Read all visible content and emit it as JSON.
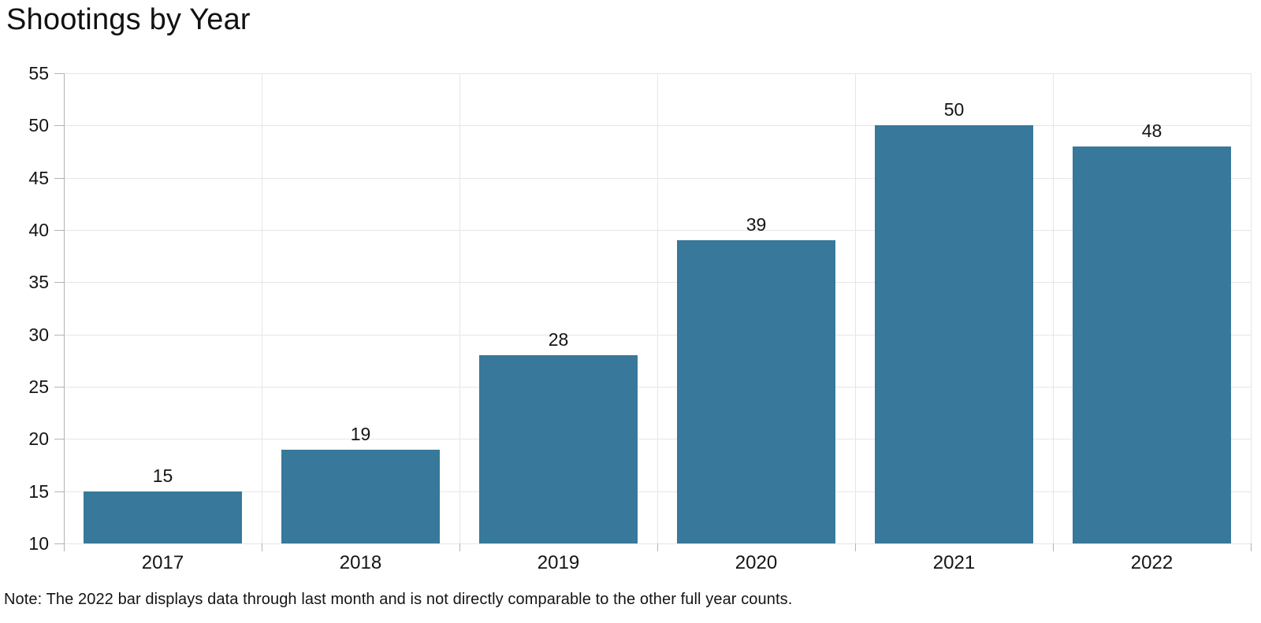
{
  "chart_data": {
    "type": "bar",
    "title": "Shootings by Year",
    "categories": [
      "2017",
      "2018",
      "2019",
      "2020",
      "2021",
      "2022"
    ],
    "values": [
      15,
      19,
      28,
      39,
      50,
      48
    ],
    "value_labels": [
      "15",
      "19",
      "28",
      "39",
      "50",
      "48"
    ],
    "y_ticks": [
      10,
      15,
      20,
      25,
      30,
      35,
      40,
      45,
      50,
      55
    ],
    "ylim": [
      10,
      55
    ],
    "xlabel": "",
    "ylabel": "",
    "grid": true,
    "legend": false,
    "bar_color": "#37789b",
    "gridline_color": "#e6e6e6",
    "axis_color": "#b3b3b3",
    "text_color": "#141414",
    "note": "Note: The 2022 bar displays data through last month and is not directly comparable to the other full year counts."
  }
}
